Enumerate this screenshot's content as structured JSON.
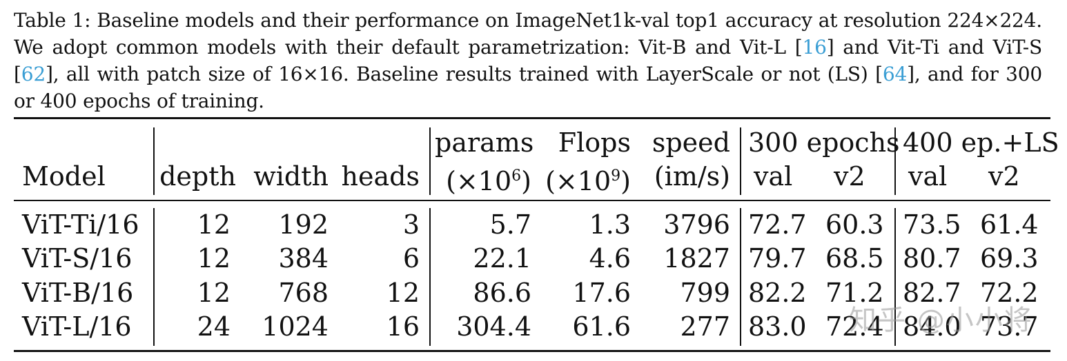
{
  "caption": {
    "part1": "Table 1: Baseline models and their performance on ImageNet1k-val top1 accuracy at resolution 224×224. We adopt common models with their default parametrization: Vit-B and Vit-L [",
    "ref1": "16",
    "part2": "] and Vit-Ti and ViT-S [",
    "ref2": "62",
    "part3": "], all with patch size of 16×16. Baseline results trained with LayerScale or not (LS) [",
    "ref3": "64",
    "part4": "], and for 300 or 400 epochs of training."
  },
  "table": {
    "header": {
      "model": "Model",
      "depth": "depth",
      "width": "width",
      "heads": "heads",
      "params_top": "params",
      "params_bottom_pre": "(×10",
      "params_exp": "6",
      "params_bottom_post": ")",
      "flops_top": "Flops",
      "flops_bottom_pre": "(×10",
      "flops_exp": "9",
      "flops_bottom_post": ")",
      "speed_top": "speed",
      "speed_bottom": "(im/s)",
      "group300": "300 epochs",
      "group400": "400 ep.+LS",
      "val300": "val",
      "v2_300": "v2",
      "val400": "val",
      "v2_400": "v2"
    },
    "rows": [
      {
        "model": "ViT-Ti/16",
        "depth": "12",
        "width": "192",
        "heads": "3",
        "params": "5.7",
        "flops": "1.3",
        "speed": "3796",
        "val300": "72.7",
        "v2_300": "60.3",
        "val400": "73.5",
        "v2_400": "61.4"
      },
      {
        "model": "ViT-S/16",
        "depth": "12",
        "width": "384",
        "heads": "6",
        "params": "22.1",
        "flops": "4.6",
        "speed": "1827",
        "val300": "79.7",
        "v2_300": "68.5",
        "val400": "80.7",
        "v2_400": "69.3"
      },
      {
        "model": "ViT-B/16",
        "depth": "12",
        "width": "768",
        "heads": "12",
        "params": "86.6",
        "flops": "17.6",
        "speed": "799",
        "val300": "82.2",
        "v2_300": "71.2",
        "val400": "82.7",
        "v2_400": "72.2"
      },
      {
        "model": "ViT-L/16",
        "depth": "24",
        "width": "1024",
        "heads": "16",
        "params": "304.4",
        "flops": "61.6",
        "speed": "277",
        "val300": "83.0",
        "v2_300": "72.4",
        "val400": "84.0",
        "v2_400": "73.7"
      }
    ]
  },
  "watermark": "知乎 @小小将"
}
